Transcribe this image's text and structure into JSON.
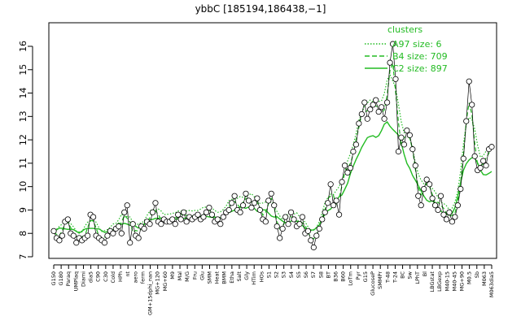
{
  "chart_data": {
    "type": "line",
    "title": "ybbC [185194,186438,−1]",
    "xlabel": "",
    "ylabel": "",
    "ylim": [
      7,
      16
    ],
    "y_ticks": [
      7,
      8,
      9,
      10,
      11,
      12,
      13,
      14,
      15,
      16
    ],
    "grid": false,
    "legend_position": "top-right",
    "legend_title": "clusters",
    "x_tick_labels": [
      "G150",
      "G180",
      "Paraq",
      "UMPlaq",
      "Diami",
      "dia5",
      "C90",
      "C30",
      "Cold",
      "HPh",
      "nt",
      "aero",
      "ferm",
      "GM+15dphi_nan",
      "MG+120",
      "MG+60",
      "M9",
      "Mal",
      "M/G",
      "Fru",
      "Glu",
      "SMM",
      "Heat",
      "BMM",
      "Etha",
      "Salt",
      "Gly",
      "HTim",
      "HOs",
      "S1",
      "S2",
      "S3",
      "S4",
      "S5",
      "S6",
      "S7",
      "S8",
      "BT",
      "B36",
      "B60",
      "LoTm",
      "Pyr",
      "G15",
      "GlucoseP",
      "SMMPr",
      "T-48",
      "T-24",
      "BC",
      "Sw",
      "LPhT",
      "Bl",
      "LBGstat",
      "LBGexp",
      "M40-15",
      "M40-45",
      "MG+90",
      "M0.5",
      "Sb",
      "M063",
      "M063dia5"
    ],
    "series": [
      {
        "name": "A97 size: 6",
        "color": "#22bb22",
        "style": "dotted"
      },
      {
        "name": "B4 size: 709",
        "color": "#22bb22",
        "style": "dashed"
      },
      {
        "name": "C2 size: 897",
        "color": "#22bb22",
        "style": "solid"
      }
    ],
    "points": [
      [
        1,
        8.1
      ],
      [
        2,
        7.8
      ],
      [
        3,
        7.7
      ],
      [
        4,
        7.9
      ],
      [
        5,
        8.5
      ],
      [
        6,
        8.6
      ],
      [
        7,
        8.0
      ],
      [
        8,
        7.9
      ],
      [
        9,
        7.6
      ],
      [
        10,
        7.8
      ],
      [
        11,
        7.7
      ],
      [
        12,
        7.8
      ],
      [
        13,
        7.9
      ],
      [
        14,
        8.8
      ],
      [
        15,
        8.7
      ],
      [
        16,
        7.9
      ],
      [
        17,
        7.8
      ],
      [
        18,
        7.7
      ],
      [
        19,
        7.6
      ],
      [
        20,
        7.9
      ],
      [
        21,
        8.1
      ],
      [
        22,
        8.0
      ],
      [
        23,
        8.2
      ],
      [
        24,
        8.3
      ],
      [
        25,
        8.0
      ],
      [
        26,
        8.9
      ],
      [
        27,
        9.2
      ],
      [
        28,
        7.6
      ],
      [
        29,
        8.4
      ],
      [
        30,
        7.9
      ],
      [
        31,
        7.8
      ],
      [
        32,
        8.3
      ],
      [
        33,
        8.2
      ],
      [
        34,
        8.5
      ],
      [
        35,
        8.4
      ],
      [
        36,
        8.9
      ],
      [
        37,
        9.3
      ],
      [
        38,
        8.5
      ],
      [
        39,
        8.4
      ],
      [
        40,
        8.6
      ],
      [
        41,
        8.5
      ],
      [
        42,
        8.5
      ],
      [
        43,
        8.6
      ],
      [
        44,
        8.4
      ],
      [
        45,
        8.8
      ],
      [
        46,
        8.6
      ],
      [
        47,
        8.9
      ],
      [
        48,
        8.5
      ],
      [
        49,
        8.7
      ],
      [
        50,
        8.6
      ],
      [
        51,
        8.7
      ],
      [
        52,
        8.8
      ],
      [
        53,
        8.6
      ],
      [
        54,
        8.7
      ],
      [
        55,
        8.9
      ],
      [
        56,
        9.1
      ],
      [
        57,
        8.8
      ],
      [
        58,
        8.5
      ],
      [
        59,
        8.6
      ],
      [
        60,
        8.4
      ],
      [
        61,
        8.7
      ],
      [
        62,
        8.9
      ],
      [
        63,
        9.0
      ],
      [
        64,
        9.3
      ],
      [
        65,
        9.6
      ],
      [
        66,
        9.0
      ],
      [
        67,
        8.9
      ],
      [
        68,
        9.2
      ],
      [
        69,
        9.7
      ],
      [
        70,
        9.4
      ],
      [
        71,
        9.1
      ],
      [
        72,
        9.3
      ],
      [
        73,
        9.5
      ],
      [
        74,
        9.0
      ],
      [
        75,
        8.6
      ],
      [
        76,
        8.5
      ],
      [
        77,
        9.4
      ],
      [
        78,
        9.7
      ],
      [
        79,
        9.2
      ],
      [
        80,
        8.3
      ],
      [
        81,
        7.8
      ],
      [
        82,
        8.2
      ],
      [
        83,
        8.7
      ],
      [
        84,
        8.4
      ],
      [
        85,
        8.9
      ],
      [
        86,
        8.6
      ],
      [
        87,
        8.3
      ],
      [
        88,
        8.4
      ],
      [
        89,
        8.7
      ],
      [
        90,
        8.0
      ],
      [
        91,
        8.1
      ],
      [
        92,
        7.7
      ],
      [
        93,
        7.4
      ],
      [
        94,
        7.9
      ],
      [
        95,
        8.2
      ],
      [
        96,
        8.6
      ],
      [
        97,
        8.9
      ],
      [
        98,
        9.3
      ],
      [
        99,
        10.1
      ],
      [
        100,
        9.2
      ],
      [
        101,
        9.4
      ],
      [
        102,
        8.8
      ],
      [
        103,
        10.2
      ],
      [
        104,
        10.9
      ],
      [
        105,
        10.6
      ],
      [
        106,
        10.8
      ],
      [
        107,
        11.5
      ],
      [
        108,
        11.8
      ],
      [
        109,
        12.7
      ],
      [
        110,
        13.1
      ],
      [
        111,
        13.6
      ],
      [
        112,
        12.9
      ],
      [
        113,
        13.3
      ],
      [
        114,
        13.5
      ],
      [
        115,
        13.7
      ],
      [
        116,
        13.2
      ],
      [
        117,
        13.4
      ],
      [
        118,
        12.9
      ],
      [
        119,
        13.6
      ],
      [
        120,
        15.3
      ],
      [
        121,
        16.1
      ],
      [
        122,
        14.6
      ],
      [
        123,
        11.5
      ],
      [
        124,
        12.1
      ],
      [
        125,
        11.8
      ],
      [
        126,
        12.4
      ],
      [
        127,
        12.2
      ],
      [
        128,
        11.6
      ],
      [
        129,
        10.9
      ],
      [
        130,
        9.6
      ],
      [
        131,
        9.2
      ],
      [
        132,
        9.9
      ],
      [
        133,
        10.3
      ],
      [
        134,
        10.1
      ],
      [
        135,
        9.5
      ],
      [
        136,
        9.2
      ],
      [
        137,
        9.0
      ],
      [
        138,
        9.6
      ],
      [
        139,
        8.8
      ],
      [
        140,
        8.6
      ],
      [
        141,
        8.9
      ],
      [
        142,
        8.5
      ],
      [
        143,
        8.7
      ],
      [
        144,
        9.2
      ],
      [
        145,
        9.9
      ],
      [
        146,
        11.2
      ],
      [
        147,
        12.8
      ],
      [
        148,
        14.5
      ],
      [
        149,
        13.5
      ],
      [
        150,
        11.3
      ],
      [
        151,
        10.7
      ],
      [
        152,
        10.8
      ],
      [
        153,
        11.1
      ],
      [
        154,
        10.9
      ],
      [
        155,
        11.6
      ],
      [
        156,
        11.7
      ]
    ]
  }
}
